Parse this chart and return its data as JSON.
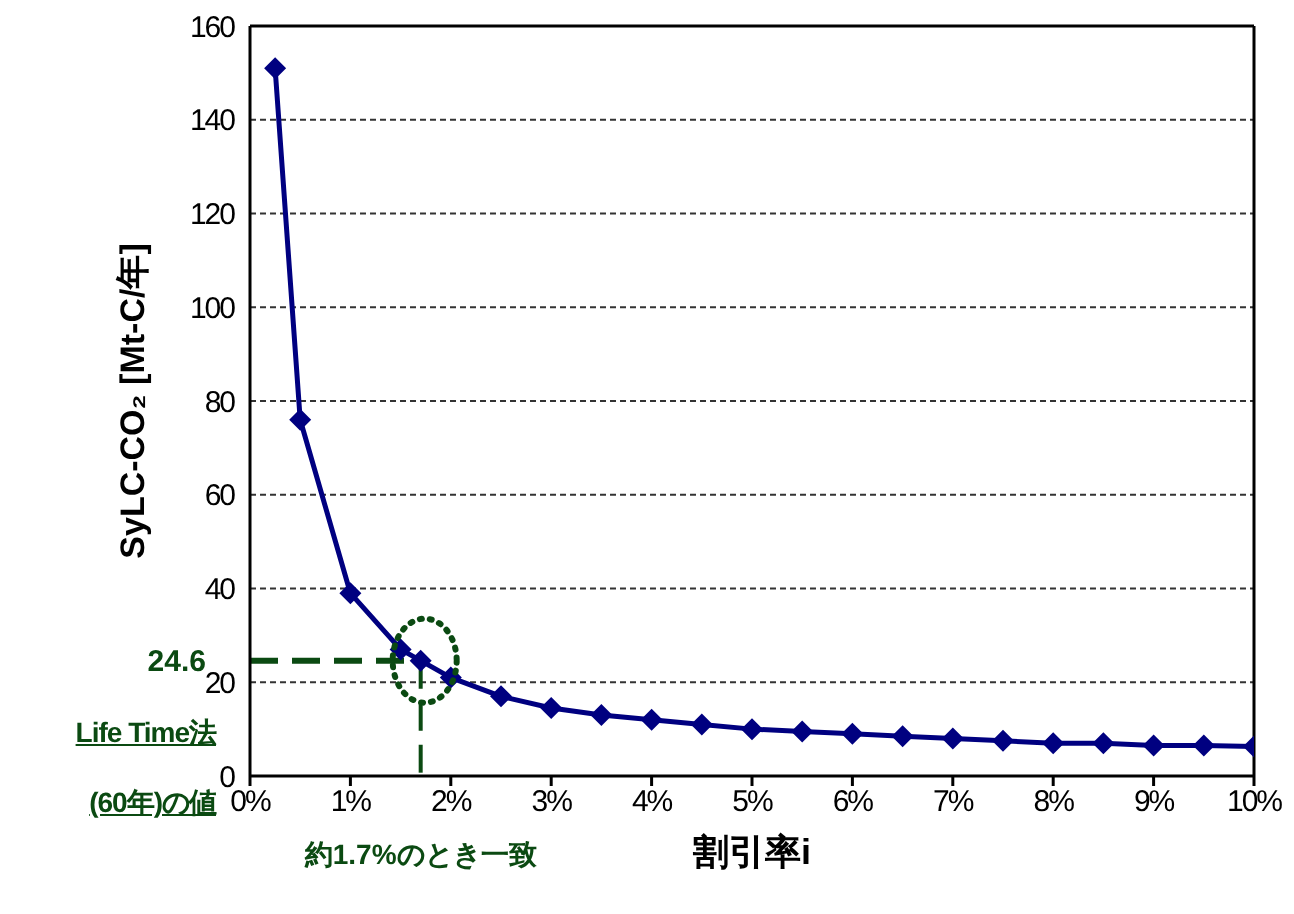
{
  "chart_data": {
    "type": "line",
    "xlabel": "割引率i",
    "ylabel": "SyLC-CO₂ [Mt-C/年]",
    "x": [
      0.25,
      0.5,
      1,
      1.5,
      1.7,
      2,
      2.5,
      3,
      3.5,
      4,
      4.5,
      5,
      5.5,
      6,
      6.5,
      7,
      7.5,
      8,
      8.5,
      9,
      9.5,
      10
    ],
    "series": [
      {
        "color": "#000080",
        "values": [
          151,
          76,
          39,
          27,
          24.6,
          21,
          17,
          14.5,
          13,
          12,
          11,
          10,
          9.5,
          9,
          8.5,
          8,
          7.5,
          7,
          7,
          6.5,
          6.5,
          6.3
        ]
      }
    ],
    "xlim": [
      0,
      10
    ],
    "xticks": [
      {
        "value": 0,
        "label": "0%"
      },
      {
        "value": 1,
        "label": "1%"
      },
      {
        "value": 2,
        "label": "2%"
      },
      {
        "value": 3,
        "label": "3%"
      },
      {
        "value": 4,
        "label": "4%"
      },
      {
        "value": 5,
        "label": "5%"
      },
      {
        "value": 6,
        "label": "6%"
      },
      {
        "value": 7,
        "label": "7%"
      },
      {
        "value": 8,
        "label": "8%"
      },
      {
        "value": 9,
        "label": "9%"
      },
      {
        "value": 10,
        "label": "10%"
      }
    ],
    "ylim": [
      0,
      160
    ],
    "yticks": [
      0,
      20,
      40,
      60,
      80,
      100,
      120,
      140,
      160
    ],
    "grid": "y",
    "marker": "diamond",
    "line_style": "solid",
    "legend": false,
    "ref_lines": [
      {
        "axis": "y",
        "value": 24.6,
        "label": "24.6",
        "color": "#0b4a12",
        "line_style": "dashed"
      },
      {
        "axis": "x",
        "value": 1.7,
        "label": "約1.7%のとき一致",
        "color": "#0b4a12",
        "line_style": "dashed"
      }
    ],
    "annotations": [
      "Life Time法",
      "(60年)の値"
    ]
  }
}
